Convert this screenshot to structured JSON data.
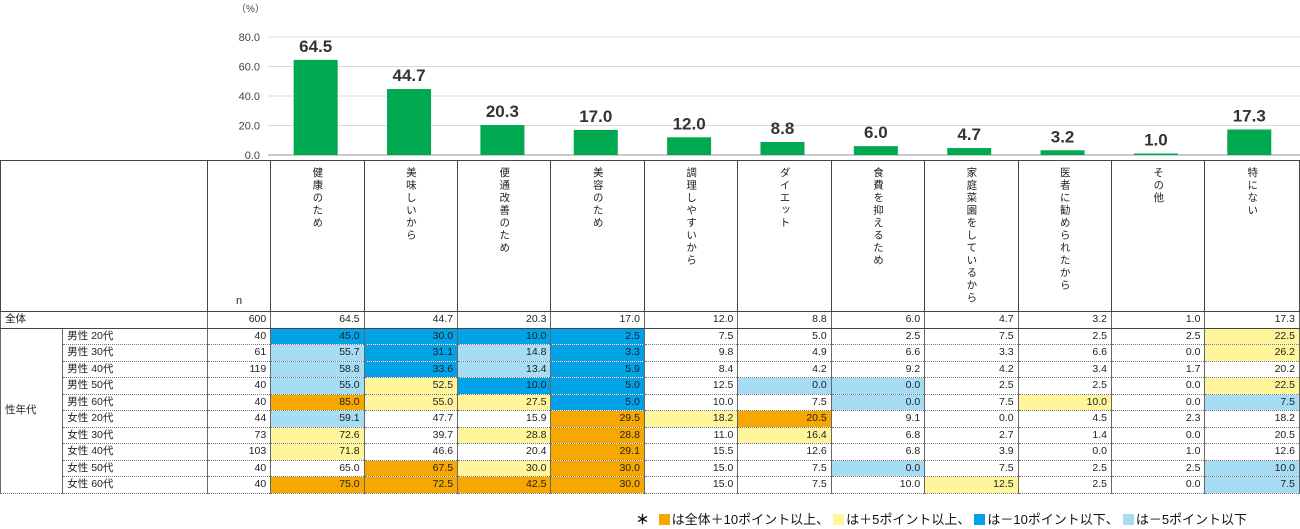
{
  "chart_data": {
    "type": "bar",
    "unit_label": "（%）",
    "yticks": [
      "80.0",
      "60.0",
      "40.0",
      "20.0",
      "0.0"
    ],
    "ylim": [
      0,
      80
    ],
    "categories": [
      "健康のため",
      "美味しいから",
      "便通改善のため",
      "美容のため",
      "調理しやすいから",
      "ダイエット",
      "食費を抑えるため",
      "家庭菜園をしているから",
      "医者に勧められたから",
      "その他",
      "特にない"
    ],
    "values": [
      64.5,
      44.7,
      20.3,
      17.0,
      12.0,
      8.8,
      6.0,
      4.7,
      3.2,
      1.0,
      17.3
    ],
    "value_labels": [
      "64.5",
      "44.7",
      "20.3",
      "17.0",
      "12.0",
      "8.8",
      "6.0",
      "4.7",
      "3.2",
      "1.0",
      "17.3"
    ],
    "bar_color": "#00a84f"
  },
  "table": {
    "n_header": "n",
    "group_label": "性年代",
    "total": {
      "label": "全体",
      "n": "600",
      "values": [
        "64.5",
        "44.7",
        "20.3",
        "17.0",
        "12.0",
        "8.8",
        "6.0",
        "4.7",
        "3.2",
        "1.0",
        "17.3"
      ]
    },
    "rows": [
      {
        "label": "男性 20代",
        "n": "40",
        "values": [
          "45.0",
          "30.0",
          "10.0",
          "2.5",
          "7.5",
          "5.0",
          "2.5",
          "7.5",
          "2.5",
          "2.5",
          "22.5"
        ],
        "colors": [
          "blue",
          "blue",
          "blue",
          "blue",
          "",
          "",
          "",
          "",
          "",
          "",
          "yellow"
        ]
      },
      {
        "label": "男性 30代",
        "n": "61",
        "values": [
          "55.7",
          "31.1",
          "14.8",
          "3.3",
          "9.8",
          "4.9",
          "6.6",
          "3.3",
          "6.6",
          "0.0",
          "26.2"
        ],
        "colors": [
          "lblue",
          "blue",
          "lblue",
          "blue",
          "",
          "",
          "",
          "",
          "",
          "",
          "yellow"
        ]
      },
      {
        "label": "男性 40代",
        "n": "119",
        "values": [
          "58.8",
          "33.6",
          "13.4",
          "5.9",
          "8.4",
          "4.2",
          "9.2",
          "4.2",
          "3.4",
          "1.7",
          "20.2"
        ],
        "colors": [
          "lblue",
          "blue",
          "lblue",
          "blue",
          "",
          "",
          "",
          "",
          "",
          "",
          ""
        ]
      },
      {
        "label": "男性 50代",
        "n": "40",
        "values": [
          "55.0",
          "52.5",
          "10.0",
          "5.0",
          "12.5",
          "0.0",
          "0.0",
          "2.5",
          "2.5",
          "0.0",
          "22.5"
        ],
        "colors": [
          "lblue",
          "yellow",
          "blue",
          "blue",
          "",
          "lblue",
          "lblue",
          "",
          "",
          "",
          "yellow"
        ]
      },
      {
        "label": "男性 60代",
        "n": "40",
        "values": [
          "85.0",
          "55.0",
          "27.5",
          "5.0",
          "10.0",
          "7.5",
          "0.0",
          "7.5",
          "10.0",
          "0.0",
          "7.5"
        ],
        "colors": [
          "orange",
          "yellow",
          "yellow",
          "blue",
          "",
          "",
          "lblue",
          "",
          "yellow",
          "",
          "lblue"
        ]
      },
      {
        "label": "女性 20代",
        "n": "44",
        "values": [
          "59.1",
          "47.7",
          "15.9",
          "29.5",
          "18.2",
          "20.5",
          "9.1",
          "0.0",
          "4.5",
          "2.3",
          "18.2"
        ],
        "colors": [
          "lblue",
          "",
          "",
          "orange",
          "yellow",
          "orange",
          "",
          "",
          "",
          "",
          ""
        ]
      },
      {
        "label": "女性 30代",
        "n": "73",
        "values": [
          "72.6",
          "39.7",
          "28.8",
          "28.8",
          "11.0",
          "16.4",
          "6.8",
          "2.7",
          "1.4",
          "0.0",
          "20.5"
        ],
        "colors": [
          "yellow",
          "",
          "yellow",
          "orange",
          "",
          "yellow",
          "",
          "",
          "",
          "",
          ""
        ]
      },
      {
        "label": "女性 40代",
        "n": "103",
        "values": [
          "71.8",
          "46.6",
          "20.4",
          "29.1",
          "15.5",
          "12.6",
          "6.8",
          "3.9",
          "0.0",
          "1.0",
          "12.6"
        ],
        "colors": [
          "yellow",
          "",
          "",
          "orange",
          "",
          "",
          "",
          "",
          "",
          "",
          ""
        ]
      },
      {
        "label": "女性 50代",
        "n": "40",
        "values": [
          "65.0",
          "67.5",
          "30.0",
          "30.0",
          "15.0",
          "7.5",
          "0.0",
          "7.5",
          "2.5",
          "2.5",
          "10.0"
        ],
        "colors": [
          "",
          "orange",
          "yellow",
          "orange",
          "",
          "",
          "lblue",
          "",
          "",
          "",
          "lblue"
        ]
      },
      {
        "label": "女性 60代",
        "n": "40",
        "values": [
          "75.0",
          "72.5",
          "42.5",
          "30.0",
          "15.0",
          "7.5",
          "10.0",
          "12.5",
          "2.5",
          "0.0",
          "7.5"
        ],
        "colors": [
          "orange",
          "orange",
          "orange",
          "orange",
          "",
          "",
          "",
          "yellow",
          "",
          "",
          "lblue"
        ]
      }
    ]
  },
  "legend": {
    "prefix": "＊",
    "items": [
      {
        "color": "#f7a800",
        "text": "は全体＋10ポイント以上、"
      },
      {
        "color": "#fff59a",
        "text": "は＋5ポイント以上、"
      },
      {
        "color": "#00a2e8",
        "text": "は－10ポイント以下、"
      },
      {
        "color": "#a7dcf5",
        "text": "は－5ポイント以下"
      }
    ]
  }
}
